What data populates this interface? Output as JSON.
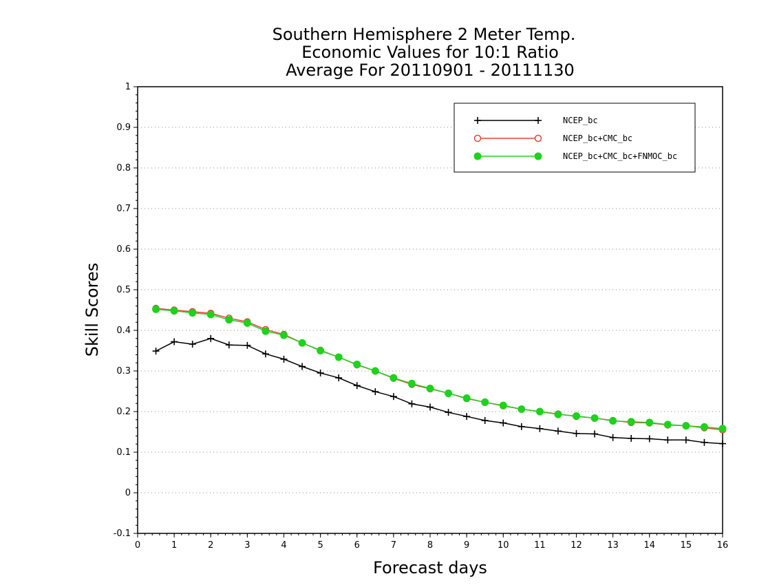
{
  "chart_data": {
    "type": "line",
    "title": [
      "Southern Hemisphere 2 Meter Temp.",
      "Economic Values for 10:1 Ratio",
      "Average For 20110901 - 20111130"
    ],
    "xlabel": "Forecast days",
    "ylabel": "Skill Scores",
    "xlim": [
      0,
      16
    ],
    "ylim": [
      -0.1,
      1
    ],
    "xticks": [
      0,
      1,
      2,
      3,
      4,
      5,
      6,
      7,
      8,
      9,
      10,
      11,
      12,
      13,
      14,
      15,
      16
    ],
    "yticks": [
      -0.1,
      0,
      0.1,
      0.2,
      0.3,
      0.4,
      0.5,
      0.6,
      0.7,
      0.8,
      0.9,
      1
    ],
    "ytick_labels": [
      "-0.1",
      "0",
      "0.1",
      "0.2",
      "0.3",
      "0.4",
      "0.5",
      "0.6",
      "0.7",
      "0.8",
      "0.9",
      "1"
    ],
    "grid": true,
    "legend_position": "top-right",
    "x": [
      0.5,
      1,
      1.5,
      2,
      2.5,
      3,
      3.5,
      4,
      4.5,
      5,
      5.5,
      6,
      6.5,
      7,
      7.5,
      8,
      8.5,
      9,
      9.5,
      10,
      10.5,
      11,
      11.5,
      12,
      12.5,
      13,
      13.5,
      14,
      14.5,
      15,
      15.5,
      16
    ],
    "series": [
      {
        "name": "NCEP_bc",
        "color": "#000000",
        "marker": "plus",
        "values": [
          0.349,
          0.372,
          0.366,
          0.38,
          0.364,
          0.363,
          0.342,
          0.329,
          0.311,
          0.295,
          0.283,
          0.264,
          0.249,
          0.237,
          0.219,
          0.211,
          0.198,
          0.188,
          0.178,
          0.172,
          0.163,
          0.158,
          0.152,
          0.146,
          0.145,
          0.136,
          0.134,
          0.133,
          0.13,
          0.13,
          0.124,
          0.121
        ]
      },
      {
        "name": "NCEP_bc+CMC_bc",
        "color": "#e8403a",
        "marker": "open-circle",
        "values": [
          0.454,
          0.45,
          0.446,
          0.442,
          0.43,
          0.421,
          0.402,
          0.39,
          0.369,
          0.351,
          0.334,
          0.315,
          0.3,
          0.282,
          0.267,
          0.256,
          0.245,
          0.232,
          0.223,
          0.214,
          0.206,
          0.2,
          0.194,
          0.188,
          0.184,
          0.178,
          0.173,
          0.172,
          0.167,
          0.165,
          0.16,
          0.155
        ]
      },
      {
        "name": "NCEP_bc+CMC_bc+FNMOC_bc",
        "color": "#1ed21e",
        "marker": "filled-circle",
        "values": [
          0.452,
          0.448,
          0.443,
          0.439,
          0.426,
          0.418,
          0.398,
          0.388,
          0.369,
          0.35,
          0.334,
          0.316,
          0.3,
          0.283,
          0.269,
          0.257,
          0.245,
          0.233,
          0.223,
          0.215,
          0.206,
          0.2,
          0.193,
          0.189,
          0.184,
          0.177,
          0.175,
          0.173,
          0.168,
          0.165,
          0.162,
          0.158
        ]
      }
    ]
  }
}
